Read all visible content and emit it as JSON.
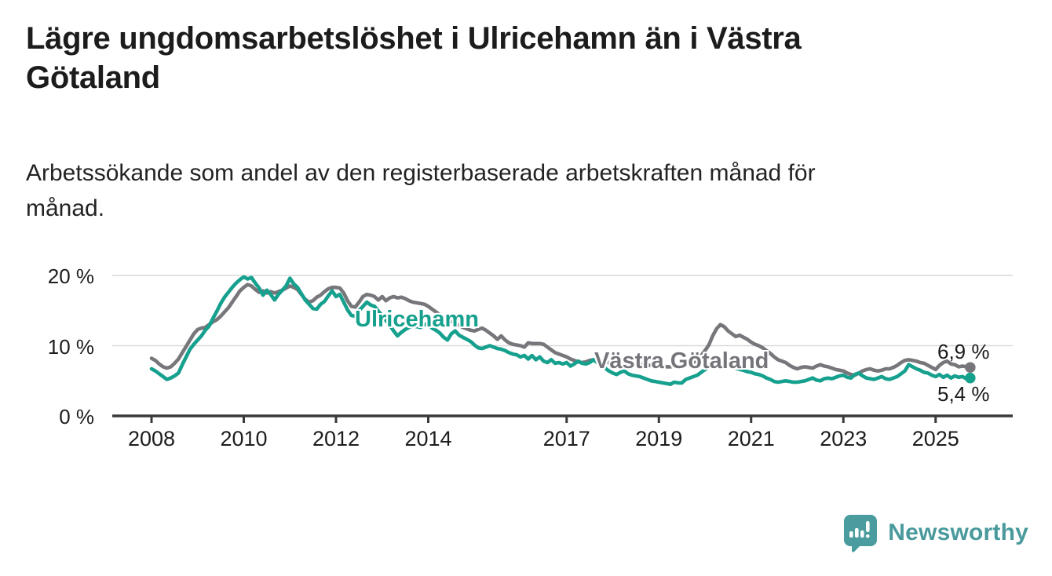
{
  "header": {
    "title_lines": [
      "Lägre ungdomsarbetslöshet i Ulricehamn än i Västra",
      "Götaland"
    ],
    "subtitle_lines": [
      "Arbetssökande som andel av den registerbaserade arbetskraften månad för",
      "månad."
    ]
  },
  "chart": {
    "series_labels": {
      "ulricehamn": "Ulricehamn",
      "vastra_gotaland": "Västra Götaland"
    },
    "end_labels": {
      "vastra_gotaland": "6,9 %",
      "ulricehamn": "5,4 %"
    },
    "colors": {
      "ulricehamn": "#16a08e",
      "vastra_gotaland": "#77767b",
      "axis": "#3a3a3a",
      "grid": "#d9d9d9"
    }
  },
  "chart_data": {
    "type": "line",
    "title": "Lägre ungdomsarbetslöshet i Ulricehamn än i Västra Götaland",
    "subtitle": "Arbetssökande som andel av den registerbaserade arbetskraften månad för månad.",
    "x_start_year": 2008,
    "points_per_year": 12,
    "ylim": [
      0,
      21
    ],
    "y_ticks": [
      {
        "value": 0,
        "label": "0 %"
      },
      {
        "value": 10,
        "label": "10 %"
      },
      {
        "value": 20,
        "label": "20 %"
      }
    ],
    "x_ticks": [
      {
        "year": 2008,
        "label": "2008"
      },
      {
        "year": 2010,
        "label": "2010"
      },
      {
        "year": 2012,
        "label": "2012"
      },
      {
        "year": 2014,
        "label": "2014"
      },
      {
        "year": 2017,
        "label": "2017"
      },
      {
        "year": 2019,
        "label": "2019"
      },
      {
        "year": 2021,
        "label": "2021"
      },
      {
        "year": 2023,
        "label": "2023"
      },
      {
        "year": 2025,
        "label": "2025"
      }
    ],
    "legend_position": "inline-labels",
    "grid": "horizontal-only",
    "series": [
      {
        "name": "Västra Götaland",
        "color": "#77767b",
        "end_value_label": "6,9 %",
        "values": [
          8.2,
          7.9,
          7.4,
          7.0,
          6.8,
          7.0,
          7.5,
          8.1,
          9.0,
          9.9,
          10.8,
          11.7,
          12.3,
          12.5,
          12.6,
          13.0,
          13.4,
          13.7,
          14.2,
          14.8,
          15.4,
          16.2,
          17.0,
          17.8,
          18.3,
          18.7,
          18.5,
          18.0,
          17.6,
          17.8,
          17.5,
          17.7,
          17.5,
          17.7,
          17.9,
          18.2,
          18.5,
          18.3,
          18.0,
          17.3,
          16.6,
          16.2,
          16.4,
          16.9,
          17.2,
          17.7,
          18.1,
          18.3,
          18.3,
          18.2,
          17.5,
          16.4,
          15.6,
          15.5,
          16.2,
          17.0,
          17.3,
          17.2,
          17.0,
          16.5,
          17.0,
          16.4,
          16.8,
          17.0,
          16.8,
          16.9,
          16.7,
          16.4,
          16.2,
          16.1,
          16.0,
          15.9,
          15.6,
          15.2,
          14.8,
          14.4,
          14.0,
          13.7,
          13.5,
          13.2,
          12.9,
          12.6,
          12.4,
          12.2,
          12.1,
          12.3,
          12.5,
          12.2,
          11.8,
          11.4,
          10.9,
          11.4,
          10.8,
          10.4,
          10.2,
          10.1,
          10.0,
          9.8,
          10.4,
          10.3,
          10.3,
          10.3,
          10.2,
          9.8,
          9.4,
          9.0,
          8.8,
          8.6,
          8.4,
          8.1,
          7.9,
          7.7,
          7.6,
          7.7,
          7.9,
          8.0,
          7.8,
          7.7,
          7.7,
          7.6,
          7.6,
          7.5,
          7.5,
          7.6,
          7.5,
          7.4,
          7.4,
          7.3,
          7.3,
          7.2,
          7.2,
          7.2,
          7.2,
          7.1,
          7.0,
          7.0,
          7.1,
          7.1,
          7.2,
          7.3,
          7.4,
          7.6,
          8.0,
          8.6,
          9.3,
          10.1,
          11.4,
          12.4,
          13.0,
          12.7,
          12.1,
          11.7,
          11.3,
          11.5,
          11.2,
          10.9,
          10.5,
          10.2,
          10.0,
          9.7,
          9.3,
          8.9,
          8.4,
          8.0,
          7.8,
          7.6,
          7.2,
          6.9,
          6.7,
          6.9,
          7.0,
          6.9,
          6.8,
          7.1,
          7.3,
          7.1,
          7.0,
          6.8,
          6.6,
          6.5,
          6.4,
          6.1,
          5.9,
          5.8,
          6.1,
          6.4,
          6.6,
          6.7,
          6.5,
          6.4,
          6.5,
          6.7,
          6.7,
          6.9,
          7.2,
          7.6,
          7.9,
          8.0,
          7.9,
          7.8,
          7.6,
          7.5,
          7.2,
          6.9,
          6.6,
          7.2,
          7.6,
          7.8,
          7.4,
          7.3,
          7.0,
          7.1,
          7.0,
          6.9
        ]
      },
      {
        "name": "Ulricehamn",
        "color": "#16a08e",
        "end_value_label": "5,4 %",
        "values": [
          6.7,
          6.4,
          6.0,
          5.6,
          5.2,
          5.4,
          5.7,
          6.1,
          7.3,
          8.4,
          9.5,
          10.2,
          10.8,
          11.4,
          12.2,
          12.8,
          13.9,
          14.9,
          16.0,
          16.9,
          17.6,
          18.3,
          18.9,
          19.4,
          19.8,
          19.5,
          19.7,
          18.9,
          18.2,
          17.2,
          17.9,
          17.3,
          16.5,
          17.3,
          17.9,
          18.5,
          19.6,
          18.8,
          18.3,
          17.4,
          16.5,
          15.9,
          15.3,
          15.2,
          15.9,
          16.3,
          17.1,
          17.8,
          17.0,
          17.3,
          16.2,
          15.1,
          14.3,
          14.2,
          15.0,
          15.6,
          16.2,
          15.8,
          15.6,
          14.9,
          14.3,
          13.6,
          12.9,
          12.1,
          11.4,
          11.9,
          12.3,
          12.6,
          12.8,
          12.7,
          12.6,
          13.0,
          13.1,
          12.5,
          12.2,
          11.8,
          11.2,
          10.8,
          11.7,
          12.1,
          11.5,
          11.2,
          10.9,
          10.6,
          10.1,
          9.7,
          9.6,
          9.8,
          10.0,
          9.8,
          9.6,
          9.5,
          9.3,
          9.0,
          8.8,
          8.7,
          8.4,
          8.6,
          8.1,
          8.6,
          8.0,
          8.4,
          7.8,
          7.6,
          8.0,
          7.5,
          7.6,
          7.4,
          7.6,
          7.1,
          7.4,
          7.8,
          7.5,
          7.4,
          7.6,
          8.0,
          7.6,
          7.2,
          6.8,
          6.4,
          6.1,
          5.9,
          6.2,
          6.4,
          6.0,
          5.8,
          5.7,
          5.6,
          5.4,
          5.2,
          5.0,
          4.9,
          4.8,
          4.7,
          4.6,
          4.5,
          4.8,
          4.7,
          4.7,
          5.2,
          5.4,
          5.6,
          5.8,
          6.2,
          6.6,
          6.9,
          7.2,
          7.5,
          7.4,
          7.2,
          7.1,
          7.0,
          6.8,
          6.6,
          6.5,
          6.3,
          6.2,
          6.0,
          5.9,
          5.7,
          5.4,
          5.2,
          4.9,
          4.8,
          4.9,
          5.0,
          4.9,
          4.8,
          4.8,
          4.9,
          5.0,
          5.2,
          5.4,
          5.1,
          5.0,
          5.3,
          5.4,
          5.3,
          5.5,
          5.7,
          5.8,
          5.5,
          5.4,
          5.9,
          6.1,
          5.7,
          5.4,
          5.3,
          5.2,
          5.4,
          5.6,
          5.3,
          5.2,
          5.4,
          5.6,
          6.0,
          6.4,
          7.3,
          7.0,
          6.7,
          6.5,
          6.2,
          6.1,
          5.8,
          5.6,
          5.9,
          5.5,
          5.8,
          5.4,
          5.7,
          5.5,
          5.6,
          5.3,
          5.4
        ]
      }
    ]
  },
  "footer": {
    "brand": "Newsworthy",
    "brand_color": "#4a9a9d"
  }
}
